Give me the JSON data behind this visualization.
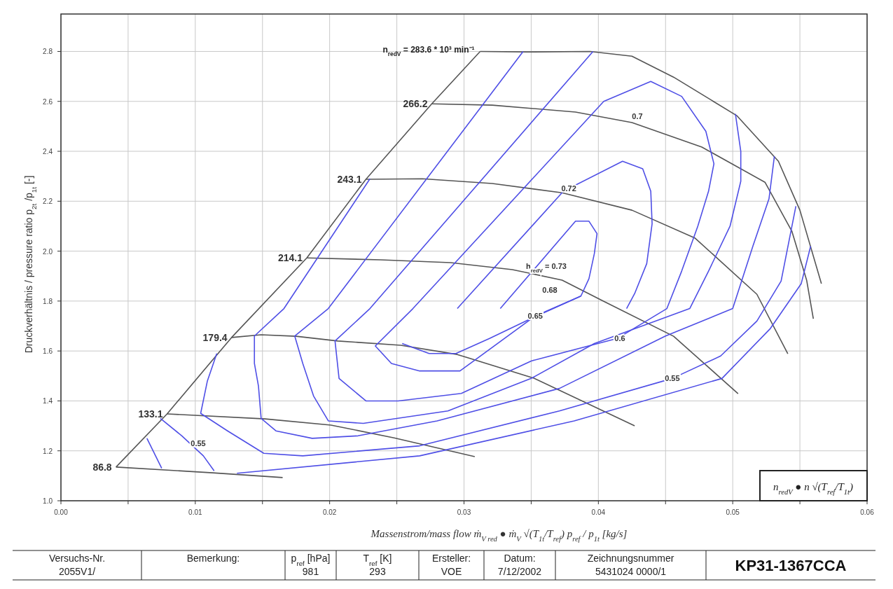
{
  "chart_data": {
    "type": "line",
    "xlabel": "Massenstrom/mass flow   ṁ$_{V red}$ ● ṁ$_{V}$ √(T$_{1t}$/T$_{ref}$) p$_{ref}$ / p$_{1t}$  [kg/s]",
    "ylabel": "Druckverhältnis / pressure ratio     p$_{2t}$ /p$_{1t}$ [-]",
    "xlim": [
      0,
      0.06
    ],
    "ylim": [
      1,
      2.95
    ],
    "xticks": [
      {
        "value": 0,
        "label": "0.00"
      },
      {
        "value": 0.005,
        "label": null
      },
      {
        "value": 0.01,
        "label": "0.01"
      },
      {
        "value": 0.015,
        "label": null
      },
      {
        "value": 0.02,
        "label": "0.02"
      },
      {
        "value": 0.025,
        "label": null
      },
      {
        "value": 0.03,
        "label": "0.03"
      },
      {
        "value": 0.035,
        "label": null
      },
      {
        "value": 0.04,
        "label": "0.04"
      },
      {
        "value": 0.045,
        "label": null
      },
      {
        "value": 0.05,
        "label": "0.05"
      },
      {
        "value": 0.055,
        "label": null
      },
      {
        "value": 0.06,
        "label": "0.06"
      }
    ],
    "yticks": [
      {
        "value": 1,
        "label": "1.0"
      },
      {
        "value": 1.2,
        "label": "1.2"
      },
      {
        "value": 1.4,
        "label": "1.4"
      },
      {
        "value": 1.6,
        "label": "1.6"
      },
      {
        "value": 1.8,
        "label": "1.8"
      },
      {
        "value": 2,
        "label": "2.0"
      },
      {
        "value": 2.2,
        "label": "2.2"
      },
      {
        "value": 2.4,
        "label": "2.4"
      },
      {
        "value": 2.6,
        "label": "2.6"
      },
      {
        "value": 2.8,
        "label": "2.8"
      }
    ],
    "grid": true,
    "marker": "none",
    "line_style": "solid",
    "series": [
      {
        "color": "#555555",
        "x": [
          0.0041,
          0.0079,
          0.0127,
          0.0183,
          0.0227,
          0.0276,
          0.0312
        ],
        "values": [
          1.135,
          1.348,
          1.654,
          1.973,
          2.288,
          2.59,
          2.8
        ]
      },
      {
        "name": "86.8",
        "color": "#555555",
        "x": [
          0.0041,
          0.0113,
          0.0165
        ],
        "values": [
          1.135,
          1.112,
          1.093
        ]
      },
      {
        "name": "133.1",
        "color": "#555555",
        "x": [
          0.0079,
          0.0152,
          0.0201,
          0.0248,
          0.0308
        ],
        "values": [
          1.348,
          1.328,
          1.303,
          1.252,
          1.177
        ]
      },
      {
        "name": "179.4",
        "color": "#555555",
        "x": [
          0.0127,
          0.0149,
          0.0175,
          0.0206,
          0.0253,
          0.0295,
          0.0352,
          0.0427
        ],
        "values": [
          1.654,
          1.665,
          1.659,
          1.64,
          1.623,
          1.586,
          1.491,
          1.3
        ]
      },
      {
        "name": "214.1",
        "color": "#555555",
        "x": [
          0.0183,
          0.0238,
          0.029,
          0.0336,
          0.0373,
          0.0404,
          0.0456,
          0.0504
        ],
        "values": [
          1.973,
          1.965,
          1.954,
          1.926,
          1.884,
          1.799,
          1.659,
          1.429
        ]
      },
      {
        "name": "243.1",
        "color": "#555555",
        "x": [
          0.0227,
          0.0269,
          0.0321,
          0.0373,
          0.0425,
          0.0472,
          0.0518,
          0.0541
        ],
        "values": [
          2.288,
          2.29,
          2.271,
          2.234,
          2.164,
          2.052,
          1.827,
          1.589
        ]
      },
      {
        "name": "266.2",
        "color": "#555555",
        "x": [
          0.0276,
          0.0321,
          0.0383,
          0.0425,
          0.0477,
          0.0524,
          0.0544,
          0.0555,
          0.056
        ],
        "values": [
          2.59,
          2.585,
          2.557,
          2.515,
          2.417,
          2.276,
          2.08,
          1.884,
          1.729
        ]
      },
      {
        "name": "n$_{redV}$ = 283.6 * 10³ min⁻¹",
        "color": "#555555",
        "x": [
          0.0312,
          0.0347,
          0.0394,
          0.0425,
          0.0456,
          0.0503,
          0.0534,
          0.055,
          0.0566
        ],
        "values": [
          2.8,
          2.798,
          2.8,
          2.781,
          2.697,
          2.543,
          2.36,
          2.164,
          1.87
        ]
      },
      {
        "color": "#4f4fe6",
        "x": [
          0.023,
          0.0166,
          0.0144,
          0.0144,
          0.0147,
          0.0149,
          0.016,
          0.0187,
          0.0221,
          0.028,
          0.0371,
          0.045,
          0.05,
          0.0515,
          0.0527,
          0.0531
        ],
        "values": [
          2.29,
          1.77,
          1.66,
          1.55,
          1.46,
          1.33,
          1.28,
          1.25,
          1.26,
          1.32,
          1.45,
          1.66,
          1.77,
          2.02,
          2.21,
          2.38
        ]
      },
      {
        "color": "#4f4fe6",
        "x": [
          0.0344,
          0.0199,
          0.0174,
          0.018,
          0.0188,
          0.0199,
          0.0225,
          0.0288,
          0.035,
          0.0397,
          0.0468,
          0.0482,
          0.0498,
          0.0506,
          0.0506,
          0.0502
        ],
        "values": [
          2.8,
          1.77,
          1.66,
          1.55,
          1.42,
          1.32,
          1.31,
          1.36,
          1.49,
          1.63,
          1.77,
          1.92,
          2.1,
          2.28,
          2.4,
          2.55
        ]
      },
      {
        "color": "#4f4fe6",
        "x": [
          0.0396,
          0.023,
          0.0204,
          0.0207,
          0.0227,
          0.0251,
          0.0298,
          0.035,
          0.0414,
          0.0451,
          0.0462,
          0.0474,
          0.0482,
          0.0486,
          0.048,
          0.0462,
          0.0439,
          0.0404,
          0.0262,
          0.0234,
          0.0246,
          0.0267,
          0.0297,
          0.0353,
          0.0387
        ],
        "values": [
          2.8,
          1.77,
          1.64,
          1.49,
          1.4,
          1.4,
          1.43,
          1.56,
          1.65,
          1.77,
          1.92,
          2.1,
          2.24,
          2.35,
          2.48,
          2.62,
          2.68,
          2.6,
          1.77,
          1.62,
          1.55,
          1.52,
          1.52,
          1.74,
          1.82
        ]
      },
      {
        "color": "#4f4fe6",
        "x": [
          0.0295,
          0.0374,
          0.0418,
          0.0433,
          0.0439,
          0.044,
          0.0436,
          0.0427,
          0.0421
        ],
        "values": [
          1.77,
          2.24,
          2.36,
          2.33,
          2.24,
          2.11,
          1.95,
          1.83,
          1.77
        ]
      },
      {
        "color": "#4f4fe6",
        "x": [
          0.0327,
          0.0383,
          0.0393,
          0.0399,
          0.0397,
          0.0393,
          0.0387,
          0.035,
          0.0319,
          0.0294,
          0.0274,
          0.0254
        ],
        "values": [
          1.77,
          2.12,
          2.12,
          2.07,
          1.99,
          1.89,
          1.82,
          1.73,
          1.65,
          1.59,
          1.59,
          1.63
        ]
      },
      {
        "color": "#4f4fe6",
        "x": [
          0.0116,
          0.0109,
          0.0104,
          0.0124,
          0.0151,
          0.018,
          0.0267,
          0.0371,
          0.0455,
          0.0491,
          0.0518,
          0.0536,
          0.0547
        ],
        "values": [
          1.59,
          1.48,
          1.35,
          1.28,
          1.19,
          1.18,
          1.22,
          1.36,
          1.49,
          1.58,
          1.72,
          1.88,
          2.18
        ]
      },
      {
        "color": "#4f4fe6",
        "x": [
          0.0131,
          0.0267,
          0.0382,
          0.0492,
          0.0528,
          0.0551,
          0.0558
        ],
        "values": [
          1.11,
          1.18,
          1.32,
          1.49,
          1.69,
          1.87,
          2.02
        ]
      },
      {
        "color": "#4f4fe6",
        "x": [
          0.0074,
          0.009,
          0.0106,
          0.0114
        ],
        "values": [
          1.33,
          1.26,
          1.18,
          1.12
        ]
      },
      {
        "color": "#4f4fe6",
        "x": [
          0.0064,
          0.0075
        ],
        "values": [
          1.25,
          1.13
        ]
      }
    ],
    "annotations": [
      {
        "text": "0.72",
        "x": 0.0378,
        "y": 2.25
      },
      {
        "text": "0.65",
        "x": 0.0353,
        "y": 1.74
      },
      {
        "text": "0.55",
        "x": 0.0455,
        "y": 1.49
      },
      "n$_{redV}$ ● n √(T$_{ref}$/T$_{1t}$)",
      "Versuchs-Nr.",
      "2055V1/",
      "Bemerkung:",
      "p$_{ref}$ [hPa]",
      "981",
      "T$_{ref}$ [K]",
      "293",
      "Ersteller:",
      "VOE",
      "Datum:",
      "7/12/2002",
      "Zeichnungsnummer",
      "5431024 0000/1",
      "KP31-1367CCA",
      "0.7",
      "h$_{redV}$ = 0.73",
      "0.68",
      "0.6",
      "0.55"
    ]
  }
}
